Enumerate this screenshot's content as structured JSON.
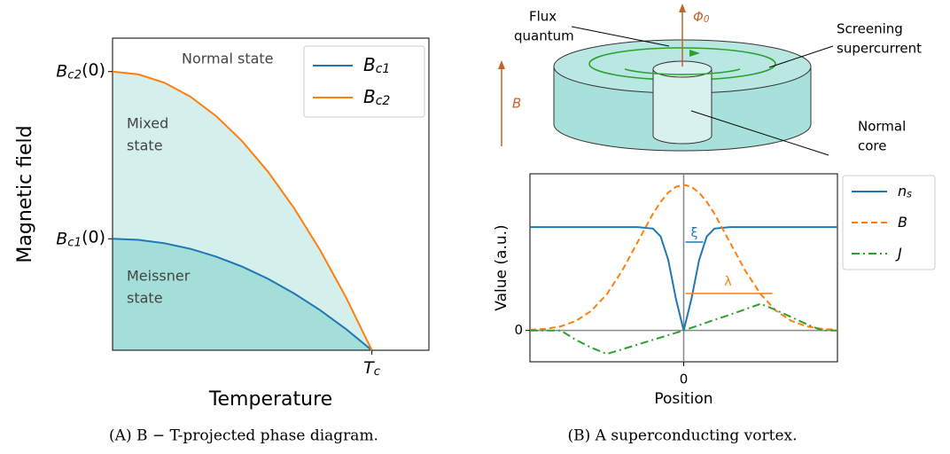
{
  "chart_data": [
    {
      "type": "line",
      "xlabel": "Temperature",
      "ylabel": "Magnetic field",
      "x": [
        0,
        0.1,
        0.2,
        0.3,
        0.4,
        0.5,
        0.6,
        0.7,
        0.8,
        0.9,
        1
      ],
      "series": [
        {
          "name": "Bc1",
          "color": "#1f77b4",
          "style": "solid",
          "fill": "#a4ded8",
          "values": [
            0.4,
            0.396,
            0.384,
            0.364,
            0.336,
            0.3,
            0.256,
            0.204,
            0.144,
            0.076,
            0
          ]
        },
        {
          "name": "Bc2",
          "color": "#ff7f0e",
          "style": "solid",
          "fill": "#d5efec",
          "values": [
            1,
            0.99,
            0.96,
            0.91,
            0.84,
            0.75,
            0.64,
            0.51,
            0.36,
            0.19,
            0
          ]
        }
      ],
      "xlim": [
        0,
        1.22
      ],
      "ylim": [
        0,
        1.12
      ],
      "xticks": [
        {
          "value": 1,
          "label": "Tc"
        }
      ],
      "yticks": [
        {
          "value": 0.4,
          "label": "Bc1(0)"
        },
        {
          "value": 1,
          "label": "Bc2(0)"
        }
      ],
      "annotations": [
        [
          "Normal state"
        ],
        [
          "Mixed",
          "state"
        ],
        [
          "Meissner",
          "state"
        ]
      ],
      "legend": "upper right",
      "grid": false
    },
    {
      "type": "line",
      "xlabel": "Position",
      "ylabel": "Value (a.u.)",
      "x": [
        -1,
        -0.9,
        -0.8,
        -0.7,
        -0.6,
        -0.5,
        -0.4,
        -0.3,
        -0.2,
        -0.15,
        -0.1,
        -0.05,
        0,
        0.05,
        0.1,
        0.15,
        0.2,
        0.3,
        0.4,
        0.5,
        0.6,
        0.7,
        0.8,
        0.9,
        1
      ],
      "series": [
        {
          "name": "ns",
          "color": "#1f77b4",
          "style": "solid",
          "values": [
            0.66,
            0.66,
            0.66,
            0.66,
            0.66,
            0.66,
            0.66,
            0.66,
            0.65,
            0.6,
            0.45,
            0.2,
            0,
            0.2,
            0.45,
            0.6,
            0.65,
            0.66,
            0.66,
            0.66,
            0.66,
            0.66,
            0.66,
            0.66,
            0.66
          ]
        },
        {
          "name": "B",
          "color": "#ff7f0e",
          "style": "dashed",
          "values": [
            0.004,
            0.01,
            0.026,
            0.061,
            0.126,
            0.232,
            0.382,
            0.564,
            0.745,
            0.821,
            0.88,
            0.917,
            0.93,
            0.917,
            0.88,
            0.821,
            0.745,
            0.564,
            0.382,
            0.232,
            0.126,
            0.061,
            0.026,
            0.01,
            0.004
          ]
        },
        {
          "name": "J",
          "color": "#2ca02c",
          "style": "dashdot",
          "values": [
            0,
            0,
            0,
            -0.06,
            -0.11,
            -0.15,
            -0.12,
            -0.09,
            -0.06,
            -0.045,
            -0.03,
            -0.015,
            0,
            0.017,
            0.034,
            0.051,
            0.068,
            0.1,
            0.135,
            0.17,
            0.13,
            0.085,
            0.04,
            0,
            0
          ]
        }
      ],
      "xlim": [
        -1,
        1
      ],
      "ylim": [
        -0.2,
        1
      ],
      "xticks": [
        0
      ],
      "yticks": [
        0
      ],
      "annotations": [
        [
          "ξ"
        ],
        [
          "λ"
        ]
      ],
      "legend": "outside right",
      "grid": false
    }
  ],
  "diagram": {
    "labels": [
      [
        "Flux",
        "quantum"
      ],
      [
        "Φ0"
      ],
      [
        "Screening",
        "supercurrent"
      ],
      [
        "B"
      ],
      [
        "Normal",
        "core"
      ]
    ]
  },
  "captions": [
    "(A) B − T-projected phase diagram.",
    "(B) A superconducting vortex."
  ]
}
